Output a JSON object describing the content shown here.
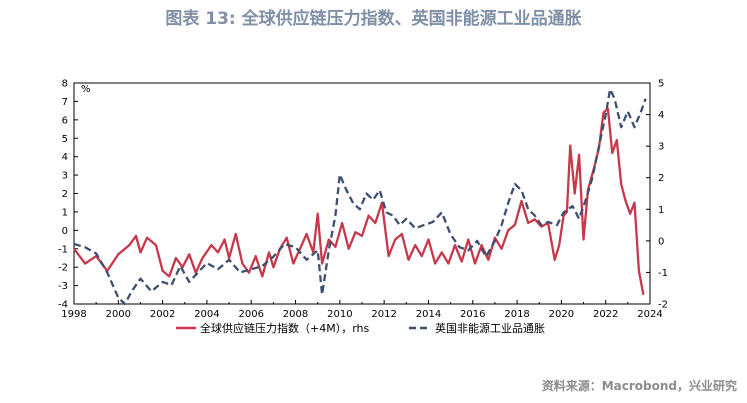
{
  "title": "图表 13: 全球供应链压力指数、英国非能源工业品通胀",
  "source": "资料来源：Macrobond，兴业研究",
  "colors": {
    "red": "#c8384b",
    "blue": "#3d4f6e",
    "title": "#7f8fa6"
  },
  "chart_data": {
    "type": "line",
    "y_left": {
      "unit": "%",
      "range": [
        -4,
        8
      ],
      "ticks": [
        "-4",
        "-3",
        "-2",
        "-1",
        "0",
        "1",
        "2",
        "3",
        "4",
        "5",
        "6",
        "7",
        "8"
      ]
    },
    "y_right": {
      "range": [
        -2,
        5
      ],
      "ticks": [
        "-2",
        "-1",
        "0",
        "1",
        "2",
        "3",
        "4",
        "5"
      ]
    },
    "x_axis": {
      "range": [
        1998,
        2024
      ],
      "ticks": [
        "1998",
        "2000",
        "2002",
        "2004",
        "2006",
        "2008",
        "2010",
        "2012",
        "2014",
        "2016",
        "2018",
        "2020",
        "2022",
        "2024"
      ]
    },
    "series": [
      {
        "name": "全球供应链压力指数（+4M），rhs",
        "axis": "left",
        "color": "#c8384b",
        "points": [
          [
            1998.0,
            -1.0
          ],
          [
            1998.5,
            -1.8
          ],
          [
            1999.0,
            -1.4
          ],
          [
            1999.5,
            -2.2
          ],
          [
            2000.0,
            -1.3
          ],
          [
            2000.5,
            -0.8
          ],
          [
            2000.8,
            -0.3
          ],
          [
            2001.0,
            -1.2
          ],
          [
            2001.3,
            -0.4
          ],
          [
            2001.7,
            -0.8
          ],
          [
            2002.0,
            -2.2
          ],
          [
            2002.3,
            -2.5
          ],
          [
            2002.6,
            -1.5
          ],
          [
            2002.9,
            -2.0
          ],
          [
            2003.2,
            -1.3
          ],
          [
            2003.5,
            -2.3
          ],
          [
            2003.8,
            -1.5
          ],
          [
            2004.2,
            -0.8
          ],
          [
            2004.5,
            -1.2
          ],
          [
            2004.8,
            -0.5
          ],
          [
            2005.0,
            -1.5
          ],
          [
            2005.3,
            -0.2
          ],
          [
            2005.6,
            -1.8
          ],
          [
            2005.9,
            -2.3
          ],
          [
            2006.2,
            -1.4
          ],
          [
            2006.5,
            -2.5
          ],
          [
            2006.8,
            -1.2
          ],
          [
            2007.0,
            -2.0
          ],
          [
            2007.3,
            -1.0
          ],
          [
            2007.6,
            -0.4
          ],
          [
            2007.9,
            -1.8
          ],
          [
            2008.2,
            -1.0
          ],
          [
            2008.5,
            -0.2
          ],
          [
            2008.8,
            -1.2
          ],
          [
            2009.0,
            0.9
          ],
          [
            2009.2,
            -1.8
          ],
          [
            2009.5,
            -0.5
          ],
          [
            2009.8,
            -0.9
          ],
          [
            2010.1,
            0.4
          ],
          [
            2010.4,
            -1.0
          ],
          [
            2010.7,
            -0.1
          ],
          [
            2011.0,
            -0.3
          ],
          [
            2011.3,
            0.8
          ],
          [
            2011.6,
            0.4
          ],
          [
            2011.9,
            1.5
          ],
          [
            2012.2,
            -1.4
          ],
          [
            2012.5,
            -0.5
          ],
          [
            2012.8,
            -0.2
          ],
          [
            2013.1,
            -1.6
          ],
          [
            2013.4,
            -0.8
          ],
          [
            2013.7,
            -1.4
          ],
          [
            2014.0,
            -0.5
          ],
          [
            2014.3,
            -1.8
          ],
          [
            2014.6,
            -1.2
          ],
          [
            2014.9,
            -1.8
          ],
          [
            2015.2,
            -0.8
          ],
          [
            2015.5,
            -1.7
          ],
          [
            2015.8,
            -0.5
          ],
          [
            2016.1,
            -1.8
          ],
          [
            2016.4,
            -0.8
          ],
          [
            2016.7,
            -1.6
          ],
          [
            2017.0,
            -0.4
          ],
          [
            2017.3,
            -1.0
          ],
          [
            2017.6,
            0.0
          ],
          [
            2017.9,
            0.3
          ],
          [
            2018.2,
            1.6
          ],
          [
            2018.5,
            0.4
          ],
          [
            2018.8,
            0.6
          ],
          [
            2019.1,
            0.2
          ],
          [
            2019.4,
            0.4
          ],
          [
            2019.7,
            -1.6
          ],
          [
            2019.9,
            -0.8
          ],
          [
            2020.1,
            0.8
          ],
          [
            2020.25,
            1.0
          ],
          [
            2020.4,
            4.6
          ],
          [
            2020.6,
            2.0
          ],
          [
            2020.8,
            4.1
          ],
          [
            2021.0,
            -0.5
          ],
          [
            2021.2,
            2.2
          ],
          [
            2021.5,
            3.5
          ],
          [
            2021.7,
            4.5
          ],
          [
            2021.9,
            6.4
          ],
          [
            2022.1,
            6.6
          ],
          [
            2022.3,
            4.2
          ],
          [
            2022.5,
            4.9
          ],
          [
            2022.7,
            2.5
          ],
          [
            2022.9,
            1.6
          ],
          [
            2023.1,
            0.9
          ],
          [
            2023.3,
            1.5
          ],
          [
            2023.5,
            -2.2
          ],
          [
            2023.7,
            -3.5
          ]
        ]
      },
      {
        "name": "英国非能源工业品通胀",
        "axis": "right",
        "color": "#3d4f6e",
        "points": [
          [
            1998.0,
            -0.1
          ],
          [
            1998.5,
            -0.2
          ],
          [
            1999.0,
            -0.4
          ],
          [
            1999.5,
            -1.0
          ],
          [
            2000.0,
            -1.8
          ],
          [
            2000.3,
            -2.0
          ],
          [
            2000.6,
            -1.6
          ],
          [
            2001.0,
            -1.2
          ],
          [
            2001.5,
            -1.6
          ],
          [
            2002.0,
            -1.3
          ],
          [
            2002.4,
            -1.4
          ],
          [
            2002.8,
            -0.8
          ],
          [
            2003.2,
            -1.3
          ],
          [
            2003.6,
            -1.0
          ],
          [
            2004.0,
            -0.7
          ],
          [
            2004.5,
            -0.9
          ],
          [
            2005.0,
            -0.6
          ],
          [
            2005.5,
            -1.0
          ],
          [
            2006.0,
            -0.9
          ],
          [
            2006.5,
            -0.8
          ],
          [
            2007.0,
            -0.5
          ],
          [
            2007.5,
            -0.1
          ],
          [
            2008.0,
            -0.2
          ],
          [
            2008.5,
            -0.6
          ],
          [
            2009.0,
            -0.3
          ],
          [
            2009.2,
            -1.7
          ],
          [
            2009.5,
            -0.3
          ],
          [
            2009.8,
            0.8
          ],
          [
            2010.0,
            2.1
          ],
          [
            2010.3,
            1.6
          ],
          [
            2010.6,
            1.2
          ],
          [
            2010.9,
            1.0
          ],
          [
            2011.2,
            1.5
          ],
          [
            2011.5,
            1.3
          ],
          [
            2011.8,
            1.6
          ],
          [
            2012.1,
            0.9
          ],
          [
            2012.4,
            0.8
          ],
          [
            2012.7,
            0.5
          ],
          [
            2013.0,
            0.7
          ],
          [
            2013.4,
            0.4
          ],
          [
            2013.8,
            0.5
          ],
          [
            2014.2,
            0.6
          ],
          [
            2014.6,
            0.9
          ],
          [
            2015.0,
            0.2
          ],
          [
            2015.4,
            -0.2
          ],
          [
            2015.8,
            -0.3
          ],
          [
            2016.2,
            0.0
          ],
          [
            2016.6,
            -0.5
          ],
          [
            2017.0,
            0.0
          ],
          [
            2017.3,
            0.5
          ],
          [
            2017.6,
            1.2
          ],
          [
            2017.9,
            1.8
          ],
          [
            2018.2,
            1.6
          ],
          [
            2018.5,
            1.0
          ],
          [
            2018.8,
            0.8
          ],
          [
            2019.1,
            0.5
          ],
          [
            2019.4,
            0.6
          ],
          [
            2019.8,
            0.5
          ],
          [
            2020.1,
            0.9
          ],
          [
            2020.5,
            1.1
          ],
          [
            2020.8,
            0.7
          ],
          [
            2021.1,
            1.3
          ],
          [
            2021.4,
            2.0
          ],
          [
            2021.7,
            3.0
          ],
          [
            2022.0,
            4.0
          ],
          [
            2022.2,
            4.8
          ],
          [
            2022.4,
            4.5
          ],
          [
            2022.7,
            3.6
          ],
          [
            2023.0,
            4.1
          ],
          [
            2023.3,
            3.6
          ],
          [
            2023.6,
            4.1
          ],
          [
            2023.8,
            4.5
          ]
        ]
      }
    ]
  }
}
